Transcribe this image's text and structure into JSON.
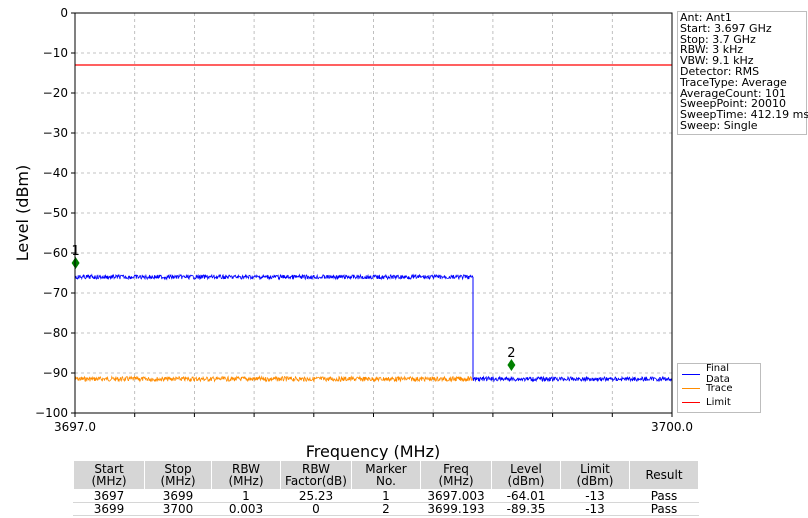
{
  "chart_data": {
    "type": "line",
    "xlabel": "Frequency (MHz)",
    "ylabel": "Level (dBm)",
    "xlim": [
      3697.0,
      3700.0
    ],
    "ylim": [
      -100,
      0
    ],
    "x_tick_labels": [
      "3697.0",
      "3700.0"
    ],
    "y_ticks": [
      0,
      -10,
      -20,
      -30,
      -40,
      -50,
      -60,
      -70,
      -80,
      -90,
      -100
    ],
    "y_tick_labels": [
      "0",
      "−10",
      "−20",
      "−30",
      "−40",
      "−50",
      "−60",
      "−70",
      "−80",
      "−90",
      "−100"
    ],
    "grid": true,
    "series": [
      {
        "name": "Final Data",
        "color": "#0000ff",
        "segments": [
          {
            "x_start": 3697.0,
            "x_end": 3699.0,
            "level": -66
          },
          {
            "x_start": 3699.0,
            "x_end": 3700.0,
            "level": -91.5
          }
        ]
      },
      {
        "name": "Trace",
        "color": "#ff8c00",
        "segments": [
          {
            "x_start": 3697.0,
            "x_end": 3699.0,
            "level": -91.5
          }
        ]
      },
      {
        "name": "Limit",
        "color": "#ff0000",
        "segments": [
          {
            "x_start": 3697.0,
            "x_end": 3700.0,
            "level": -13
          }
        ]
      }
    ],
    "markers": [
      {
        "label": "1",
        "x": 3697.003,
        "y": -62.5,
        "color": "#008000"
      },
      {
        "label": "2",
        "x": 3699.193,
        "y": -88.0,
        "color": "#008000"
      }
    ],
    "legend_position": "bottom-right outside"
  },
  "info_box": [
    "Ant: Ant1",
    "Start: 3.697 GHz",
    "Stop: 3.7 GHz",
    "RBW: 3 kHz",
    "VBW: 9.1 kHz",
    "Detector: RMS",
    "TraceType: Average",
    "AverageCount: 101",
    "SweepPoint: 20010",
    "SweepTime: 412.19 ms",
    "Sweep: Single"
  ],
  "table": {
    "headers": [
      [
        "Start",
        "(MHz)"
      ],
      [
        "Stop",
        "(MHz)"
      ],
      [
        "RBW",
        "(MHz)"
      ],
      [
        "RBW",
        "Factor(dB)"
      ],
      [
        "Marker",
        "No."
      ],
      [
        "Freq",
        "(MHz)"
      ],
      [
        "Level",
        "(dBm)"
      ],
      [
        "Limit",
        "(dBm)"
      ],
      [
        "Result"
      ]
    ],
    "rows": [
      [
        "3697",
        "3699",
        "1",
        "25.23",
        "1",
        "3697.003",
        "-64.01",
        "-13",
        "Pass"
      ],
      [
        "3699",
        "3700",
        "0.003",
        "0",
        "2",
        "3699.193",
        "-89.35",
        "-13",
        "Pass"
      ]
    ]
  }
}
